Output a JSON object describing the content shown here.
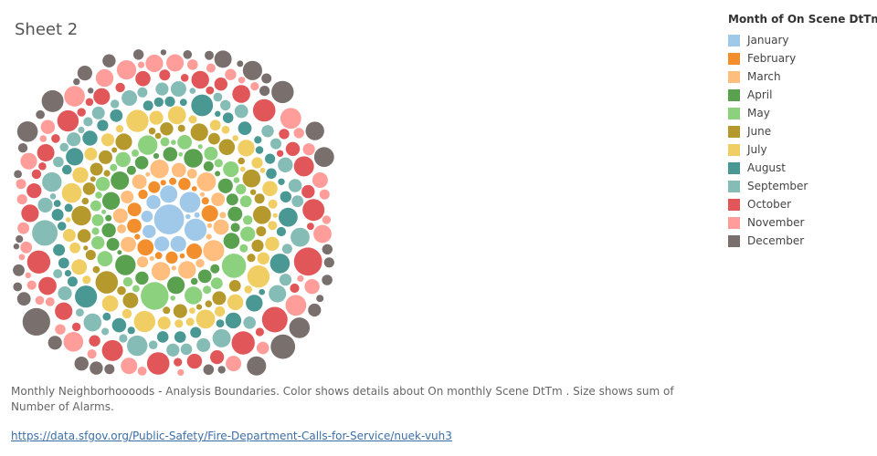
{
  "sheet": {
    "title": "Sheet 2"
  },
  "legend": {
    "title": "Month of On Scene DtTm",
    "items": [
      {
        "label": "January",
        "color": "#a0c8e8"
      },
      {
        "label": "February",
        "color": "#f28e2b"
      },
      {
        "label": "March",
        "color": "#ffbe7d"
      },
      {
        "label": "April",
        "color": "#59a14f"
      },
      {
        "label": "May",
        "color": "#8cd17d"
      },
      {
        "label": "June",
        "color": "#b6992d"
      },
      {
        "label": "July",
        "color": "#f1ce63"
      },
      {
        "label": "August",
        "color": "#499894"
      },
      {
        "label": "September",
        "color": "#86bcb6"
      },
      {
        "label": "October",
        "color": "#e15759"
      },
      {
        "label": "November",
        "color": "#ff9d9a"
      },
      {
        "label": "December",
        "color": "#79706e"
      }
    ]
  },
  "caption": "Monthly Neighborhoooods - Analysis Boundaries.  Color shows details about On monthly Scene DtTm .  Size shows sum of Number of Alarms.",
  "source": {
    "url_text": "https://data.sfgov.org/Public-Safety/Fire-Department-Calls-for-Service/nuek-vuh3"
  },
  "chart_data": {
    "type": "packed-bubble",
    "color_field": "Month of On Scene DtTm",
    "size_field": "sum of Number of Alarms",
    "months": [
      "January",
      "February",
      "March",
      "April",
      "May",
      "June",
      "July",
      "August",
      "September",
      "October",
      "November",
      "December"
    ],
    "mark_counts": [
      41,
      41,
      41,
      41,
      41,
      41,
      41,
      41,
      41,
      41,
      41,
      41
    ]
  }
}
